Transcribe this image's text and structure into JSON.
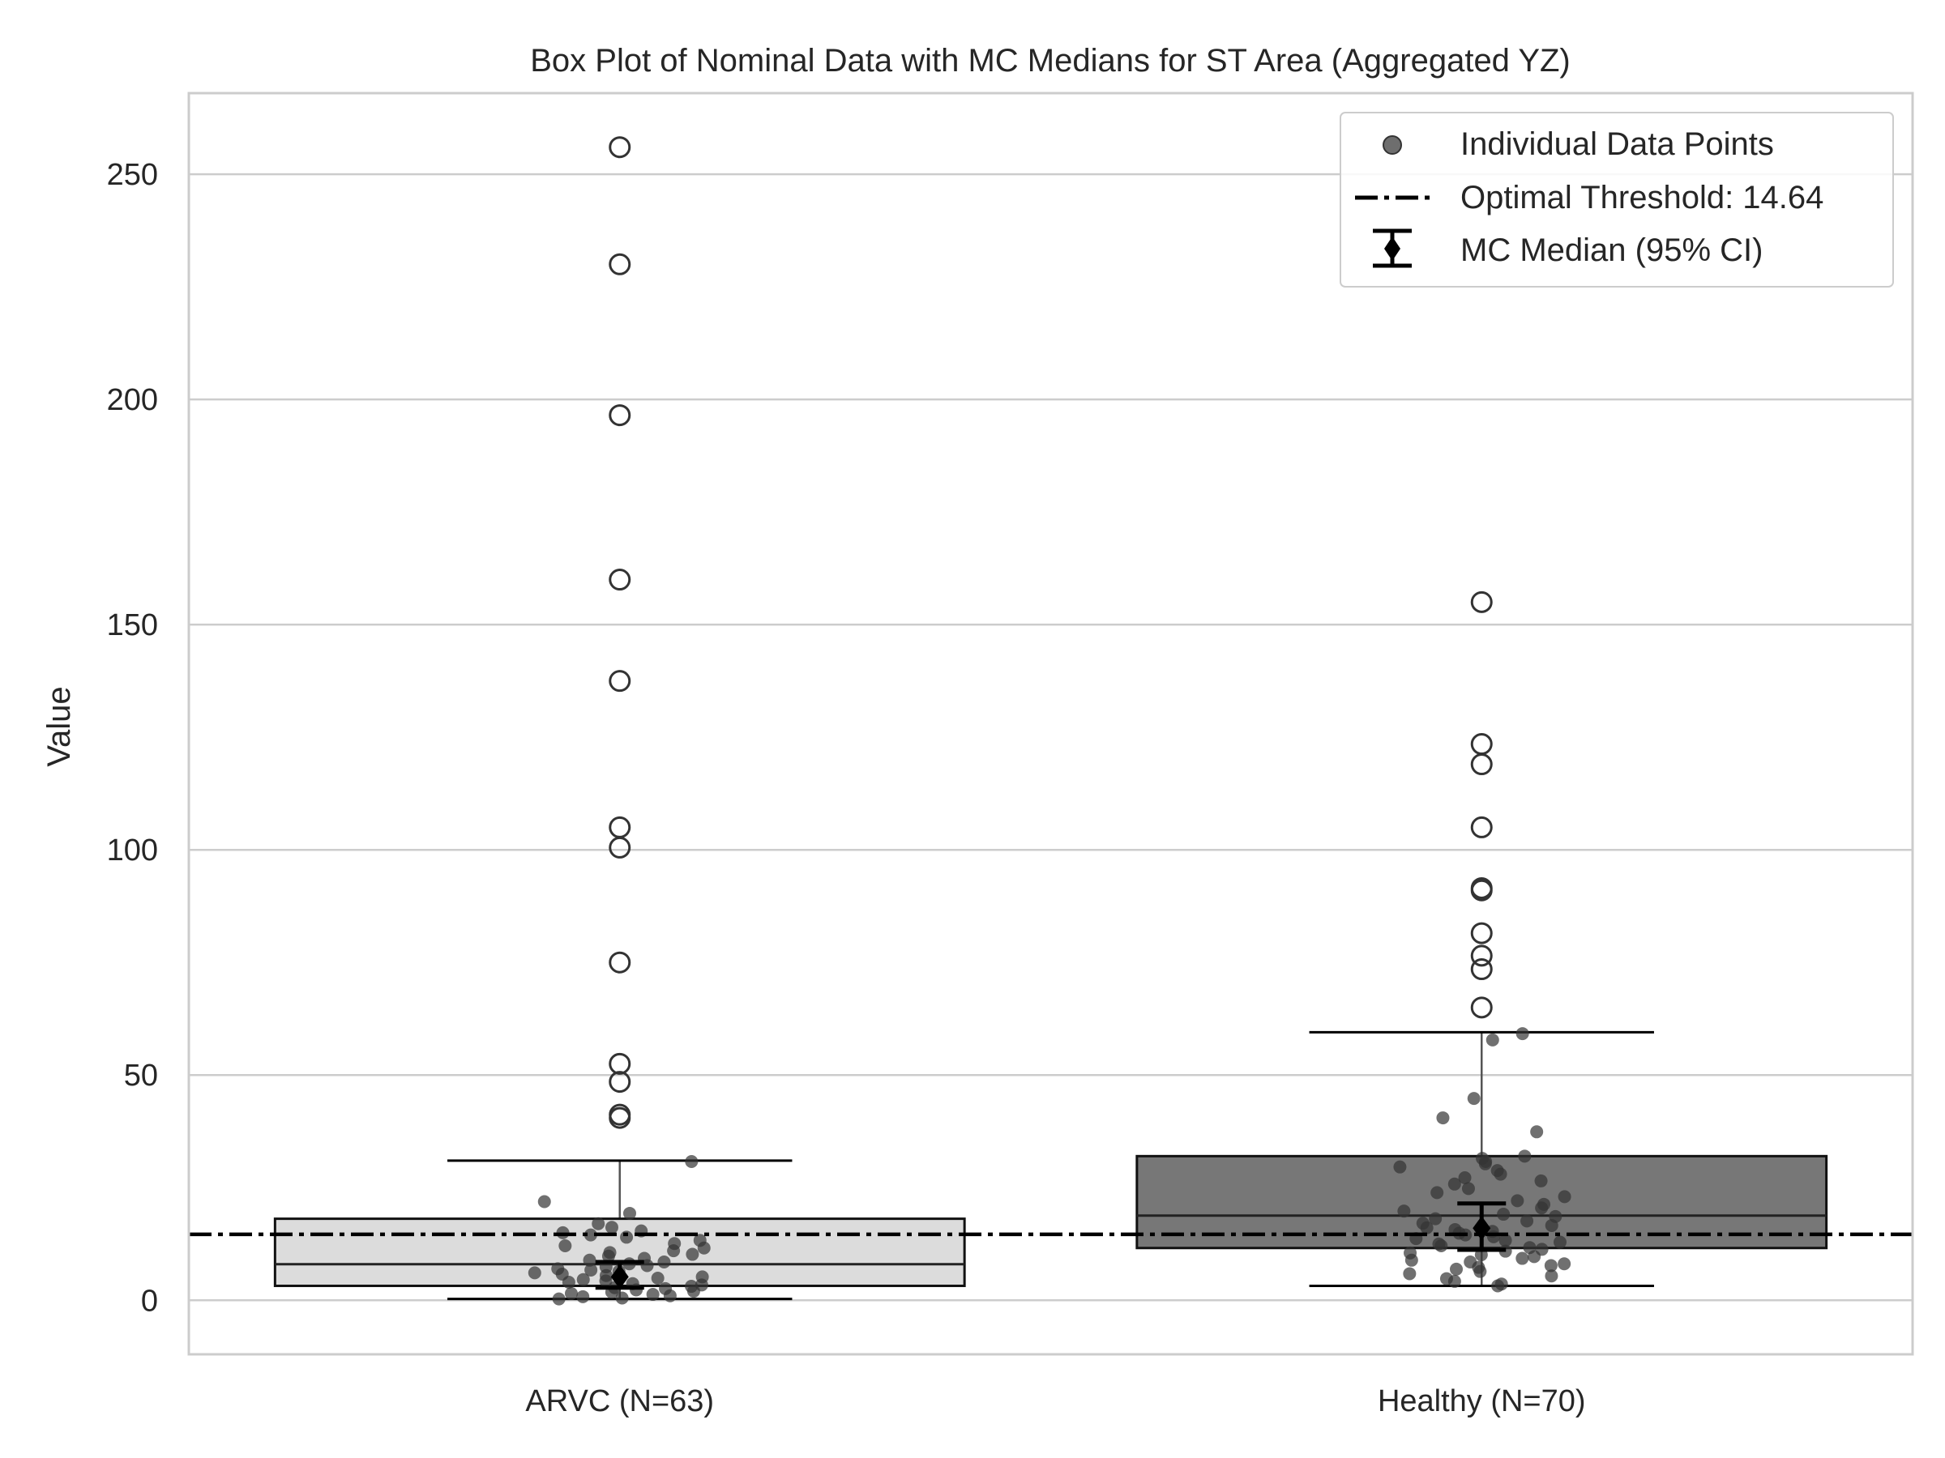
{
  "chart_data": {
    "type": "box",
    "title": "Box Plot of Nominal Data with MC Medians for ST Area (Aggregated YZ)",
    "xlabel": "",
    "ylabel": "Value",
    "ylim": [
      -12,
      268
    ],
    "yticks": [
      0,
      50,
      100,
      150,
      200,
      250
    ],
    "grid": true,
    "legend_position": "top-right",
    "legend": {
      "points_label": "Individual Data Points",
      "threshold_label": "Optimal Threshold: 14.64",
      "mc_label": "MC Median (95% CI)"
    },
    "threshold": 14.64,
    "groups": [
      {
        "label": "ARVC (N=63)",
        "color": "#dcdcdc",
        "q1": 3.2,
        "median": 8.0,
        "q3": 18.1,
        "whisker_low": 0.3,
        "whisker_high": 31.0,
        "outliers": [
          256,
          230,
          196.5,
          160,
          137.5,
          105,
          100.5,
          75,
          52.5,
          48.5,
          41.2,
          40.5
        ],
        "mc_median": 5.2,
        "mc_ci": [
          2.8,
          8.5
        ],
        "points": [
          30.8,
          21.9,
          19.3,
          17.0,
          16.2,
          15.4,
          15.0,
          14.5,
          14.0,
          13.3,
          12.6,
          12.1,
          11.6,
          11.0,
          10.6,
          10.2,
          9.8,
          9.3,
          8.9,
          8.5,
          8.1,
          7.7,
          7.4,
          7.0,
          6.7,
          6.4,
          6.1,
          5.8,
          5.5,
          5.2,
          4.9,
          4.6,
          4.3,
          4.0,
          3.7,
          3.4,
          3.1,
          2.8,
          2.6,
          2.3,
          2.0,
          1.8,
          1.5,
          1.3,
          1.0,
          0.8,
          0.5,
          0.3
        ]
      },
      {
        "label": "Healthy (N=70)",
        "color": "#777777",
        "q1": 11.6,
        "median": 18.8,
        "q3": 32.0,
        "whisker_low": 3.2,
        "whisker_high": 59.5,
        "outliers": [
          155,
          123.5,
          119,
          105,
          91.5,
          91,
          81.5,
          76.5,
          73.5,
          65
        ],
        "mc_median": 16.0,
        "mc_ci": [
          11.2,
          21.5
        ],
        "points": [
          59.2,
          57.8,
          44.8,
          40.5,
          37.4,
          32.0,
          31.5,
          30.8,
          30.3,
          29.6,
          28.8,
          28.0,
          27.2,
          26.5,
          25.8,
          24.8,
          23.9,
          23.0,
          22.1,
          21.3,
          20.5,
          19.8,
          19.1,
          18.6,
          18.1,
          17.6,
          17.1,
          16.6,
          16.1,
          15.7,
          15.3,
          14.9,
          14.5,
          14.1,
          13.7,
          13.3,
          12.9,
          12.5,
          12.1,
          11.7,
          11.3,
          10.9,
          10.5,
          10.1,
          9.7,
          9.3,
          8.9,
          8.5,
          8.1,
          7.7,
          7.3,
          6.9,
          6.4,
          5.9,
          5.4,
          4.8,
          4.2,
          3.6,
          3.2
        ]
      }
    ]
  }
}
